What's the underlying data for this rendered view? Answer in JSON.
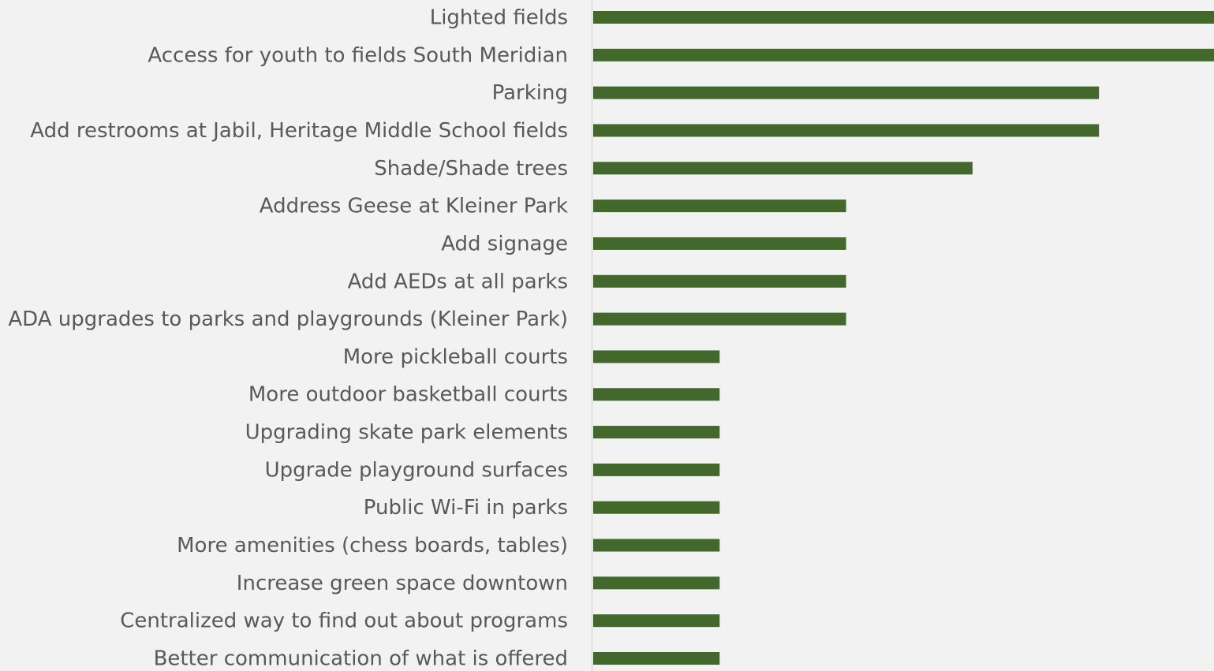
{
  "chart_data": {
    "type": "barh",
    "categories": [
      "Lighted fields",
      "Access for youth to fields South Meridian",
      "Parking",
      "Add restrooms at Jabil, Heritage Middle School fields",
      "Shade/Shade trees",
      "Address Geese at Kleiner Park",
      "Add signage",
      "Add AEDs at all parks",
      "ADA upgrades to parks and playgrounds (Kleiner Park)",
      "More pickleball courts",
      "More outdoor basketball courts",
      "Upgrading skate park elements",
      "Upgrade playground surfaces",
      "Public Wi-Fi in parks",
      "More amenities (chess boards, tables)",
      "Increase green space downtown",
      "Centralized way to find out about programs",
      "Better communication of what is offered"
    ],
    "values": [
      5,
      5,
      4,
      4,
      3,
      2,
      2,
      2,
      2,
      1,
      1,
      1,
      1,
      1,
      1,
      1,
      1,
      1
    ],
    "color": "#43682b",
    "xlim": [
      0,
      5
    ]
  }
}
